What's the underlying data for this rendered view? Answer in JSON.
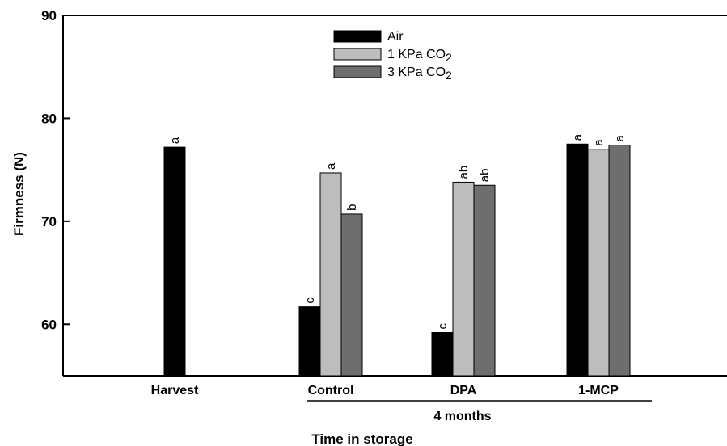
{
  "chart_data": {
    "type": "bar",
    "title": "",
    "xlabel": "Time in storage",
    "ylabel": "Firmness (N)",
    "ylim": [
      55,
      90
    ],
    "yticks": [
      60,
      70,
      80,
      90
    ],
    "grid": false,
    "legend_position": "top-center",
    "categories": [
      "Harvest",
      "Control",
      "DPA",
      "1-MCP"
    ],
    "group_label": "4 months",
    "series": [
      {
        "name": "Air",
        "color": "#000000",
        "values": [
          77.2,
          61.7,
          59.2,
          77.5
        ],
        "labels": [
          "a",
          "c",
          "c",
          "a"
        ]
      },
      {
        "name": "1 KPa CO2",
        "name_base": "1 KPa CO",
        "name_sub": "2",
        "color": "#bdbdbd",
        "values": [
          null,
          74.7,
          73.8,
          77.0
        ],
        "labels": [
          null,
          "a",
          "ab",
          "a"
        ]
      },
      {
        "name": "3 KPa CO2",
        "name_base": "3 KPa CO",
        "name_sub": "2",
        "color": "#6e6e6e",
        "values": [
          null,
          70.7,
          73.5,
          77.4
        ],
        "labels": [
          null,
          "b",
          "ab",
          "a"
        ]
      }
    ]
  }
}
